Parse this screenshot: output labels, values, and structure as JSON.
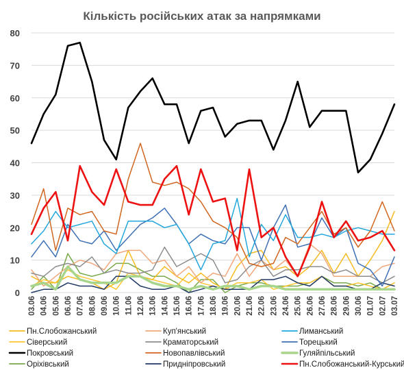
{
  "chart_data": {
    "type": "line",
    "title": "Кількість російських атак за напрямками",
    "xlabel": "",
    "ylabel": "",
    "ylim": [
      0,
      80
    ],
    "yticks": [
      0,
      10,
      20,
      30,
      40,
      50,
      60,
      70,
      80
    ],
    "grid": true,
    "legend_position": "bottom",
    "x": [
      "03.06",
      "04.06",
      "05.06",
      "06.06",
      "07.06",
      "08.06",
      "09.06",
      "10.06",
      "11.06",
      "12.06",
      "13.06",
      "14.06",
      "15.06",
      "16.06",
      "17.06",
      "18.06",
      "19.06",
      "20.06",
      "21.06",
      "22.06",
      "23.06",
      "24.06",
      "25.06",
      "26.06",
      "27.06",
      "28.06",
      "29.06",
      "30.06",
      "01.07",
      "02.07",
      "03.07"
    ],
    "series": [
      {
        "name": "Пн.Слобожанський",
        "color": "#f5bb20",
        "width": 1.5,
        "values": [
          5,
          3,
          3,
          5,
          4,
          3,
          1,
          3,
          13,
          5,
          4,
          8,
          5,
          3,
          6,
          3,
          1,
          8,
          12,
          13,
          7,
          8,
          5,
          8,
          13,
          6,
          12,
          5,
          10,
          16,
          25
        ]
      },
      {
        "name": "Куп'янський",
        "color": "#f0a77a",
        "width": 1.5,
        "values": [
          7,
          2,
          5,
          8,
          10,
          9,
          7,
          12,
          13,
          13,
          9,
          10,
          5,
          8,
          3,
          6,
          5,
          12,
          5,
          10,
          7,
          10,
          5,
          15,
          12,
          5,
          5,
          5,
          5,
          8,
          9
        ]
      },
      {
        "name": "Лиманський",
        "color": "#22a6dc",
        "width": 1.5,
        "values": [
          15,
          19,
          25,
          20,
          21,
          22,
          15,
          12,
          22,
          22,
          22,
          20,
          21,
          15,
          7,
          15,
          16,
          29,
          11,
          21,
          16,
          24,
          17,
          17,
          18,
          17,
          19,
          20,
          19,
          18,
          18
        ]
      },
      {
        "name": "Сіверський",
        "color": "#ffc533",
        "width": 1.5,
        "values": [
          2,
          4,
          3,
          7,
          5,
          4,
          3,
          1,
          6,
          5,
          4,
          3,
          2,
          6,
          3,
          2,
          1,
          3,
          3,
          4,
          1,
          2,
          3,
          3,
          5,
          2,
          2,
          3,
          2,
          1,
          3
        ]
      },
      {
        "name": "Краматорський",
        "color": "#8c8c8c",
        "width": 1.5,
        "values": [
          6,
          5,
          8,
          9,
          8,
          11,
          6,
          7,
          6,
          6,
          7,
          14,
          8,
          10,
          12,
          10,
          3,
          4,
          8,
          10,
          5,
          7,
          7,
          8,
          8,
          6,
          7,
          5,
          5,
          3,
          5
        ]
      },
      {
        "name": "Торецький",
        "color": "#3d6fb3",
        "width": 1.5,
        "values": [
          11,
          16,
          11,
          21,
          16,
          15,
          19,
          13,
          17,
          21,
          23,
          26,
          21,
          15,
          18,
          16,
          15,
          20,
          20,
          10,
          20,
          27,
          14,
          15,
          23,
          17,
          20,
          9,
          7,
          2,
          11
        ]
      },
      {
        "name": "Покровський",
        "color": "#000000",
        "width": 2.6,
        "values": [
          46,
          55,
          61,
          76,
          77,
          65,
          47,
          41,
          57,
          62,
          66,
          58,
          58,
          46,
          56,
          57,
          48,
          52,
          53,
          53,
          44,
          53,
          65,
          51,
          56,
          56,
          56,
          37,
          41,
          49,
          58
        ]
      },
      {
        "name": "Новопавлівський",
        "color": "#d0661f",
        "width": 1.5,
        "values": [
          21,
          32,
          13,
          26,
          24,
          25,
          19,
          18,
          35,
          46,
          34,
          33,
          34,
          32,
          28,
          22,
          20,
          17,
          9,
          8,
          9,
          17,
          15,
          20,
          25,
          18,
          20,
          14,
          19,
          28,
          19
        ]
      },
      {
        "name": "Гуляйпільський",
        "color": "#a8d58c",
        "width": 3.5,
        "values": [
          2,
          3,
          1,
          8,
          4,
          3,
          3,
          3,
          5,
          5,
          3,
          2,
          2,
          1,
          2,
          1,
          2,
          2,
          1,
          2,
          2,
          1,
          1,
          1,
          1,
          1,
          1,
          1,
          1,
          1,
          1
        ]
      },
      {
        "name": "Оріхівський",
        "color": "#78a84a",
        "width": 1.5,
        "values": [
          1,
          5,
          1,
          12,
          6,
          5,
          6,
          9,
          9,
          7,
          5,
          5,
          3,
          0,
          4,
          4,
          0,
          2,
          3,
          3,
          2,
          2,
          2,
          3,
          5,
          3,
          3,
          2,
          3,
          1,
          3
        ]
      },
      {
        "name": "Придніпровський",
        "color": "#1f3864",
        "width": 1.5,
        "values": [
          0,
          1,
          1,
          3,
          2,
          2,
          1,
          5,
          5,
          2,
          1,
          1,
          2,
          0,
          1,
          2,
          1,
          1,
          1,
          4,
          4,
          5,
          3,
          2,
          5,
          2,
          2,
          1,
          1,
          3,
          2
        ]
      },
      {
        "name": "Пн.Слобожанський-Курський",
        "color": "#ee1111",
        "width": 2.6,
        "values": [
          18,
          26,
          31,
          16,
          39,
          31,
          27,
          38,
          28,
          27,
          27,
          35,
          39,
          24,
          38,
          28,
          29,
          13,
          38,
          17,
          20,
          11,
          5,
          14,
          28,
          17,
          22,
          16,
          17,
          19,
          13
        ]
      }
    ]
  }
}
